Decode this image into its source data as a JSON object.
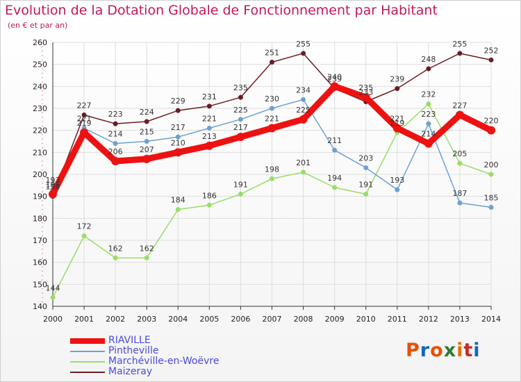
{
  "title": "Evolution de la Dotation Globale de Fonctionnement par Habitant",
  "subtitle": "(en € et par an)",
  "logo": {
    "text": "Proxiti",
    "colors": [
      "#e65100",
      "#1565c0",
      "#e65100",
      "#2e7d32",
      "#ef6c00",
      "#c62828",
      "#1565c0"
    ]
  },
  "colors": {
    "title": "#c2185b",
    "axis": "#333333",
    "grid": "#dddddd",
    "legend_text": "#4a4adf"
  },
  "chart_data": {
    "type": "line",
    "title": "Evolution de la Dotation Globale de Fonctionnement par Habitant",
    "subtitle": "(en € et par an)",
    "xlabel": "",
    "ylabel": "",
    "x": [
      "2000",
      "2001",
      "2002",
      "2003",
      "2004",
      "2005",
      "2006",
      "2007",
      "2008",
      "2009",
      "2010",
      "2011",
      "2012",
      "2013",
      "2014"
    ],
    "ylim": [
      140,
      260
    ],
    "yticks": [
      140,
      150,
      160,
      170,
      180,
      190,
      200,
      210,
      220,
      230,
      240,
      250,
      260
    ],
    "grid": true,
    "legend_position": "bottom-left",
    "series": [
      {
        "name": "Maizeray",
        "color": "#6b1d24",
        "emphasis": false,
        "values": [
          190,
          227,
          223,
          224,
          229,
          231,
          235,
          251,
          255,
          239,
          233,
          239,
          248,
          255,
          252
        ],
        "labels": [
          "190",
          "227",
          "223",
          "224",
          "229",
          "231",
          "235",
          "251",
          "255",
          "239",
          "233",
          "239",
          "248",
          "255",
          "252"
        ]
      },
      {
        "name": "Marchéville-en-Woëvre",
        "color": "#99dd66",
        "emphasis": false,
        "values": [
          144,
          172,
          162,
          162,
          184,
          186,
          191,
          198,
          201,
          194,
          191,
          219,
          232,
          205,
          200
        ],
        "labels": [
          "144",
          "172",
          "162",
          "162",
          "184",
          "186",
          "191",
          "198",
          "201",
          "194",
          "191",
          "219",
          "232",
          "205",
          "200"
        ]
      },
      {
        "name": "Pintheville",
        "color": "#6ea0d2",
        "emphasis": false,
        "values": [
          193,
          221,
          214,
          215,
          217,
          221,
          225,
          230,
          234,
          211,
          203,
          193,
          223,
          187,
          185
        ],
        "labels": [
          "193",
          "221",
          "214",
          "215",
          "217",
          "221",
          "225",
          "230",
          "234",
          "211",
          "203",
          "193",
          "223",
          "187",
          "185"
        ]
      },
      {
        "name": "RIAVILLE",
        "color": "#ee1111",
        "emphasis": true,
        "values": [
          191,
          219,
          206,
          207,
          210,
          213,
          217,
          221,
          225,
          240,
          235,
          221,
          214,
          227,
          220
        ],
        "labels": [
          "191",
          "219",
          "206",
          "207",
          "210",
          "213",
          "217",
          "221",
          "225",
          "240",
          "235",
          "221",
          "214",
          "227",
          "220"
        ]
      }
    ],
    "legend": [
      "RIAVILLE",
      "Pintheville",
      "Marchéville-en-Woëvre",
      "Maizeray"
    ]
  }
}
